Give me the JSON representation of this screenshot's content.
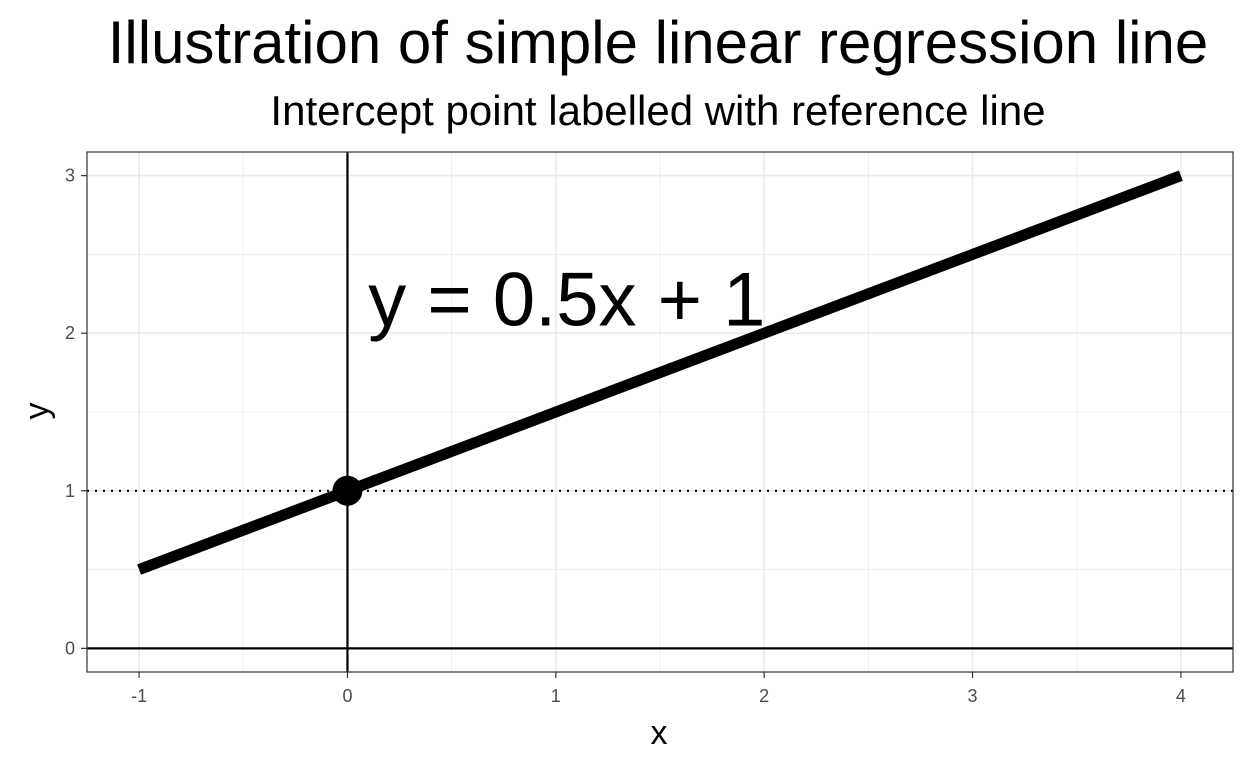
{
  "chart_data": {
    "type": "line",
    "title": "Illustration of simple linear regression line",
    "subtitle": "Intercept point labelled with reference line",
    "xlabel": "x",
    "ylabel": "y",
    "xlim": [
      -1.25,
      4.25
    ],
    "ylim": [
      -0.15,
      3.15
    ],
    "x_ticks": [
      -1,
      0,
      1,
      2,
      3,
      4
    ],
    "y_ticks": [
      0,
      1,
      2,
      3
    ],
    "grid": true,
    "series": [
      {
        "x": [
          -1,
          4
        ],
        "y": [
          0.5,
          3
        ],
        "color": "#000000"
      }
    ],
    "points": [
      {
        "x": 0,
        "y": 1,
        "color": "#000000"
      }
    ],
    "reference_lines": {
      "vertical_solid_x": 0,
      "horizontal_solid_y": 0,
      "horizontal_dotted_y": 1
    },
    "annotations": [
      {
        "text": "y = 0.5x + 1",
        "x": 0.1,
        "y": 2.05
      }
    ]
  }
}
